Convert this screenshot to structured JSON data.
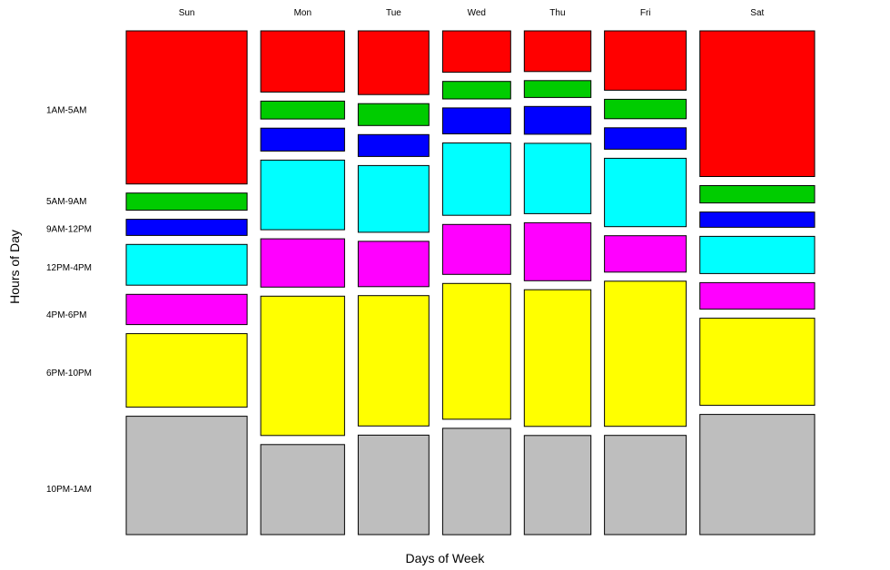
{
  "chart_data": {
    "type": "mosaic",
    "xlabel": "Days of Week",
    "ylabel": "Hours of Day",
    "columns": [
      "Sun",
      "Mon",
      "Tue",
      "Wed",
      "Thu",
      "Fri",
      "Sat"
    ],
    "rows": [
      "1AM-5AM",
      "5AM-9AM",
      "9AM-12PM",
      "12PM-4PM",
      "4PM-6PM",
      "6PM-10PM",
      "10PM-1AM"
    ],
    "row_colors": [
      "#ff0000",
      "#00cc00",
      "#0000ff",
      "#00ffff",
      "#ff00ff",
      "#ffff00",
      "#bebebe"
    ],
    "column_shares": [
      0.176,
      0.122,
      0.103,
      0.099,
      0.097,
      0.119,
      0.167
    ],
    "values": [
      [
        0.304,
        0.034,
        0.032,
        0.081,
        0.06,
        0.146,
        0.235
      ],
      [
        0.123,
        0.036,
        0.046,
        0.14,
        0.097,
        0.28,
        0.181
      ],
      [
        0.128,
        0.044,
        0.044,
        0.134,
        0.091,
        0.262,
        0.2
      ],
      [
        0.083,
        0.035,
        0.052,
        0.145,
        0.1,
        0.272,
        0.213
      ],
      [
        0.082,
        0.034,
        0.056,
        0.142,
        0.117,
        0.276,
        0.2
      ],
      [
        0.119,
        0.039,
        0.043,
        0.137,
        0.073,
        0.291,
        0.199
      ],
      [
        0.286,
        0.034,
        0.03,
        0.073,
        0.052,
        0.171,
        0.236
      ]
    ],
    "row_tick_positions": [
      0.157,
      0.338,
      0.393,
      0.469,
      0.563,
      0.678,
      0.909
    ],
    "grid": false,
    "legend": "none"
  }
}
